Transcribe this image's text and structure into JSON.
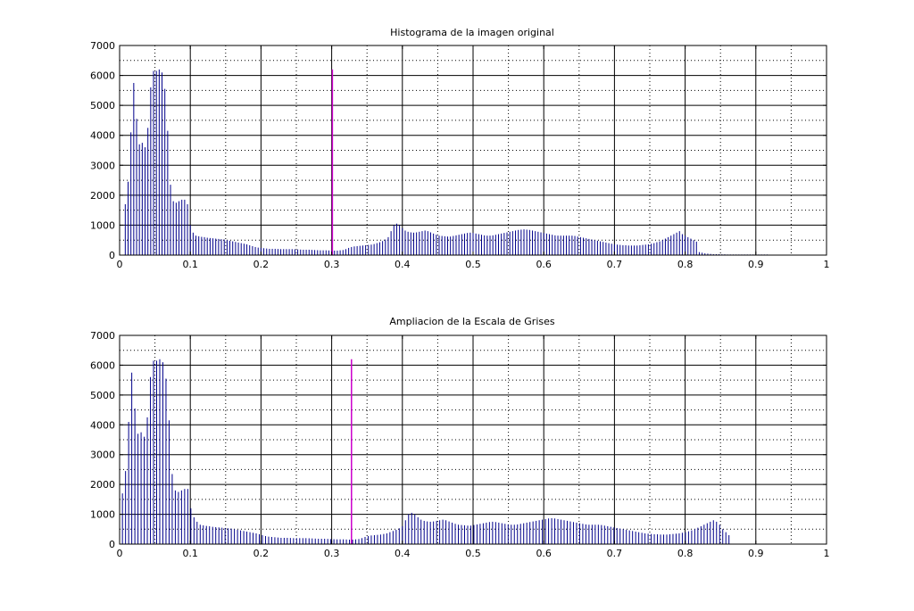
{
  "chart_data": [
    {
      "type": "bar",
      "title": "Histograma de la imagen original",
      "xlabel": "",
      "ylabel": "",
      "xlim": [
        0,
        1
      ],
      "ylim": [
        0,
        7000
      ],
      "xticks": [
        0,
        0.1,
        0.2,
        0.3,
        0.4,
        0.5,
        0.6,
        0.7,
        0.8,
        0.9,
        1
      ],
      "xtick_labels": [
        "0",
        "0.1",
        "0.2",
        "0.3",
        "0.4",
        "0.5",
        "0.6",
        "0.7",
        "0.8",
        "0.9",
        "1"
      ],
      "yticks": [
        0,
        1000,
        2000,
        3000,
        4000,
        5000,
        6000,
        7000
      ],
      "ytick_labels": [
        "0",
        "1000",
        "2000",
        "3000",
        "4000",
        "5000",
        "6000",
        "7000"
      ],
      "grid": true,
      "colors": {
        "bars": "#00008b",
        "highlight": "#cc00cc"
      },
      "bins": {
        "step": 0.004,
        "comment_free_values": true,
        "x0": 0.004,
        "values": [
          0,
          1700,
          2450,
          4100,
          5750,
          4550,
          3700,
          3750,
          3600,
          4250,
          5600,
          6150,
          6150,
          6200,
          6100,
          5550,
          4150,
          2350,
          1800,
          1750,
          1800,
          1850,
          1850,
          1700,
          1000,
          750,
          650,
          630,
          610,
          600,
          580,
          570,
          560,
          550,
          540,
          530,
          520,
          500,
          480,
          460,
          440,
          420,
          400,
          380,
          360,
          330,
          300,
          270,
          250,
          240,
          230,
          220,
          210,
          210,
          210,
          205,
          200,
          200,
          200,
          200,
          200,
          195,
          190,
          185,
          180,
          180,
          180,
          175,
          170,
          165,
          160,
          160,
          160,
          155,
          150,
          150,
          150,
          160,
          170,
          200,
          240,
          270,
          290,
          300,
          310,
          320,
          330,
          340,
          350,
          370,
          400,
          430,
          470,
          520,
          600,
          800,
          1000,
          1050,
          1000,
          900,
          820,
          780,
          760,
          750,
          760,
          780,
          800,
          820,
          800,
          760,
          720,
          680,
          650,
          640,
          630,
          620,
          620,
          640,
          660,
          680,
          700,
          720,
          740,
          750,
          740,
          720,
          700,
          680,
          660,
          650,
          650,
          660,
          680,
          700,
          720,
          740,
          760,
          780,
          800,
          820,
          840,
          850,
          860,
          850,
          840,
          820,
          800,
          780,
          760,
          740,
          720,
          700,
          680,
          660,
          650,
          650,
          650,
          650,
          650,
          650,
          640,
          620,
          600,
          580,
          560,
          540,
          520,
          500,
          480,
          460,
          440,
          420,
          400,
          380,
          360,
          350,
          340,
          330,
          330,
          320,
          320,
          320,
          320,
          330,
          340,
          350,
          360,
          380,
          400,
          430,
          460,
          500,
          550,
          600,
          650,
          700,
          750,
          800,
          700,
          650,
          600,
          550,
          500,
          450,
          100,
          80,
          60,
          50,
          40,
          30,
          30,
          30,
          25,
          25,
          20,
          20,
          20,
          20,
          20,
          20,
          20,
          20,
          20,
          20,
          20,
          20,
          20,
          20,
          20
        ]
      },
      "highlight": {
        "x": 0.301,
        "value": 6200
      }
    },
    {
      "type": "bar",
      "title": "Ampliacion de la Escala de Grises",
      "xlabel": "",
      "ylabel": "",
      "xlim": [
        0,
        1
      ],
      "ylim": [
        0,
        7000
      ],
      "xticks": [
        0,
        0.1,
        0.2,
        0.3,
        0.4,
        0.5,
        0.6,
        0.7,
        0.8,
        0.9,
        1
      ],
      "xtick_labels": [
        "0",
        "0.1",
        "0.2",
        "0.3",
        "0.4",
        "0.5",
        "0.6",
        "0.7",
        "0.8",
        "0.9",
        "1"
      ],
      "yticks": [
        0,
        1000,
        2000,
        3000,
        4000,
        5000,
        6000,
        7000
      ],
      "ytick_labels": [
        "0",
        "1000",
        "2000",
        "3000",
        "4000",
        "5000",
        "6000",
        "7000"
      ],
      "grid": true,
      "colors": {
        "bars": "#00008b",
        "highlight": "#cc00cc"
      },
      "bins": {
        "step": 0.0044,
        "x0": 0.004,
        "values": [
          1700,
          2450,
          4100,
          5750,
          4550,
          3700,
          3750,
          3600,
          4250,
          5600,
          6150,
          6150,
          6200,
          6100,
          5550,
          4150,
          2350,
          1800,
          1750,
          1800,
          1850,
          1850,
          1200,
          900,
          750,
          650,
          630,
          610,
          600,
          580,
          570,
          560,
          550,
          540,
          530,
          520,
          500,
          480,
          460,
          440,
          420,
          400,
          380,
          360,
          330,
          300,
          270,
          250,
          240,
          230,
          220,
          210,
          210,
          210,
          205,
          200,
          200,
          200,
          200,
          200,
          195,
          190,
          185,
          180,
          180,
          180,
          175,
          170,
          165,
          160,
          160,
          160,
          155,
          150,
          150,
          160,
          170,
          200,
          240,
          270,
          290,
          300,
          310,
          320,
          340,
          360,
          400,
          440,
          480,
          530,
          600,
          800,
          1000,
          1050,
          1000,
          900,
          820,
          780,
          760,
          750,
          760,
          780,
          800,
          820,
          800,
          760,
          720,
          680,
          650,
          640,
          630,
          620,
          620,
          640,
          660,
          680,
          700,
          720,
          740,
          750,
          740,
          720,
          700,
          680,
          660,
          650,
          650,
          660,
          680,
          700,
          720,
          740,
          760,
          780,
          800,
          820,
          840,
          860,
          870,
          860,
          840,
          820,
          800,
          780,
          760,
          740,
          720,
          700,
          680,
          660,
          650,
          650,
          650,
          650,
          640,
          620,
          600,
          580,
          560,
          540,
          520,
          500,
          480,
          460,
          440,
          420,
          400,
          380,
          360,
          350,
          340,
          330,
          330,
          320,
          320,
          320,
          330,
          340,
          350,
          360,
          380,
          400,
          430,
          460,
          500,
          550,
          600,
          650,
          700,
          750,
          800,
          750,
          650,
          500,
          400,
          300
        ]
      },
      "highlight": {
        "x": 0.328,
        "value": 6200
      }
    }
  ]
}
